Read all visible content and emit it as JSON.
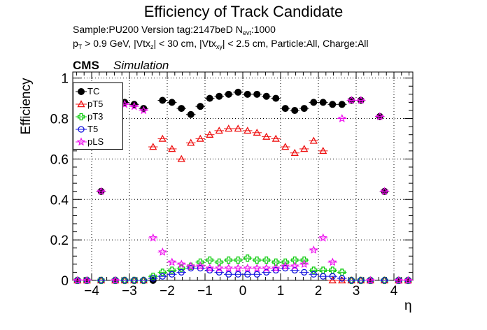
{
  "chart_data": {
    "type": "scatter",
    "title": "Efficiency of Track Candidate",
    "subtitle_line1": "Sample:PU200   Version tag:2147beD  N",
    "subtitle_line1_sub": "evt",
    "subtitle_line1_end": ":1000",
    "subtitle_line2": {
      "p": "p",
      "p_sub": "T",
      "a": " > 0.9 GeV, |Vtx",
      "z_sub": "z",
      "b": "| < 30 cm, |Vtx",
      "xy_sub": "xy",
      "c": "| < 2.5 cm, Particle:All, Charge:All"
    },
    "cms_label": "CMS",
    "simulation_label": "Simulation",
    "ylabel": "Efficiency",
    "xlabel": "η",
    "xlim": [
      -4.5,
      4.5
    ],
    "ylim": [
      0,
      1.03
    ],
    "xticks": [
      -4,
      -3,
      -2,
      -1,
      0,
      1,
      2,
      3,
      4
    ],
    "xtick_labels": [
      "−4",
      "−3",
      "−2",
      "−1",
      "0",
      "1",
      "2",
      "3",
      "4"
    ],
    "yticks": [
      0,
      0.2,
      0.4,
      0.6,
      0.8,
      1
    ],
    "ytick_labels": [
      "0",
      "0.2",
      "0.4",
      "0.6",
      "0.8",
      "1"
    ],
    "grid": true,
    "legend_position": "top-left",
    "bin_half_width": 0.125,
    "series": [
      {
        "name": "TC",
        "color": "#000000",
        "marker": "filled-circle",
        "points": [
          [
            -4.375,
            0
          ],
          [
            -4.125,
            0
          ],
          [
            -3.75,
            0.44
          ],
          [
            -3.375,
            0
          ],
          [
            -3.125,
            0.88
          ],
          [
            -2.875,
            0.87
          ],
          [
            -2.625,
            0.85
          ],
          [
            -2.375,
            0
          ],
          [
            -2.125,
            0.89
          ],
          [
            -1.875,
            0.88
          ],
          [
            -1.625,
            0.85
          ],
          [
            -1.375,
            0.82
          ],
          [
            -1.125,
            0.86
          ],
          [
            -0.875,
            0.9
          ],
          [
            -0.625,
            0.91
          ],
          [
            -0.375,
            0.92
          ],
          [
            -0.125,
            0.93
          ],
          [
            0.125,
            0.92
          ],
          [
            0.375,
            0.92
          ],
          [
            0.625,
            0.91
          ],
          [
            0.875,
            0.9
          ],
          [
            1.125,
            0.85
          ],
          [
            1.375,
            0.84
          ],
          [
            1.625,
            0.85
          ],
          [
            1.875,
            0.88
          ],
          [
            2.125,
            0.88
          ],
          [
            2.375,
            0.87
          ],
          [
            2.625,
            0.87
          ],
          [
            2.875,
            0.89
          ],
          [
            3.125,
            0.89
          ],
          [
            3.375,
            0
          ],
          [
            3.625,
            0.81
          ],
          [
            3.75,
            0.44
          ],
          [
            4.125,
            0
          ],
          [
            4.375,
            0
          ]
        ]
      },
      {
        "name": "pT5",
        "color": "#ee1111",
        "marker": "open-triangle",
        "points": [
          [
            -4.375,
            0
          ],
          [
            -4.125,
            0
          ],
          [
            -3.75,
            0
          ],
          [
            -3.375,
            0
          ],
          [
            -3.125,
            0
          ],
          [
            -2.875,
            0
          ],
          [
            -2.625,
            0
          ],
          [
            -2.375,
            0.66
          ],
          [
            -2.125,
            0.7
          ],
          [
            -1.875,
            0.65
          ],
          [
            -1.625,
            0.6
          ],
          [
            -1.375,
            0.68
          ],
          [
            -1.125,
            0.7
          ],
          [
            -0.875,
            0.72
          ],
          [
            -0.625,
            0.74
          ],
          [
            -0.375,
            0.75
          ],
          [
            -0.125,
            0.75
          ],
          [
            0.125,
            0.74
          ],
          [
            0.375,
            0.73
          ],
          [
            0.625,
            0.71
          ],
          [
            0.875,
            0.7
          ],
          [
            1.125,
            0.66
          ],
          [
            1.375,
            0.63
          ],
          [
            1.625,
            0.65
          ],
          [
            1.875,
            0.69
          ],
          [
            2.125,
            0.64
          ],
          [
            2.375,
            0
          ],
          [
            2.625,
            0
          ],
          [
            2.875,
            0
          ],
          [
            3.125,
            0
          ],
          [
            3.375,
            0
          ],
          [
            3.75,
            0
          ],
          [
            4.125,
            0
          ],
          [
            4.375,
            0
          ]
        ]
      },
      {
        "name": "pT3",
        "color": "#11cc11",
        "marker": "open-cross",
        "points": [
          [
            -4.375,
            0
          ],
          [
            -4.125,
            0
          ],
          [
            -3.75,
            0
          ],
          [
            -3.375,
            0
          ],
          [
            -3.125,
            0
          ],
          [
            -2.875,
            0
          ],
          [
            -2.625,
            0
          ],
          [
            -2.375,
            0.02
          ],
          [
            -2.125,
            0.04
          ],
          [
            -1.875,
            0.05
          ],
          [
            -1.625,
            0.06
          ],
          [
            -1.375,
            0.07
          ],
          [
            -1.125,
            0.09
          ],
          [
            -0.875,
            0.1
          ],
          [
            -0.625,
            0.09
          ],
          [
            -0.375,
            0.1
          ],
          [
            -0.125,
            0.1
          ],
          [
            0.125,
            0.11
          ],
          [
            0.375,
            0.1
          ],
          [
            0.625,
            0.1
          ],
          [
            0.875,
            0.09
          ],
          [
            1.125,
            0.09
          ],
          [
            1.375,
            0.1
          ],
          [
            1.625,
            0.1
          ],
          [
            1.875,
            0.05
          ],
          [
            2.125,
            0.05
          ],
          [
            2.375,
            0.05
          ],
          [
            2.625,
            0.04
          ],
          [
            2.875,
            0
          ],
          [
            3.125,
            0
          ],
          [
            3.375,
            0
          ],
          [
            3.75,
            0
          ],
          [
            4.125,
            0
          ],
          [
            4.375,
            0
          ]
        ]
      },
      {
        "name": "T5",
        "color": "#1111dd",
        "marker": "open-circle",
        "points": [
          [
            -4.375,
            0
          ],
          [
            -4.125,
            0
          ],
          [
            -3.75,
            0
          ],
          [
            -3.375,
            0
          ],
          [
            -3.125,
            0
          ],
          [
            -2.875,
            0
          ],
          [
            -2.625,
            0
          ],
          [
            -2.375,
            0.01
          ],
          [
            -2.125,
            0.02
          ],
          [
            -1.875,
            0.03
          ],
          [
            -1.625,
            0.04
          ],
          [
            -1.375,
            0.06
          ],
          [
            -1.125,
            0.06
          ],
          [
            -0.875,
            0.05
          ],
          [
            -0.625,
            0.04
          ],
          [
            -0.375,
            0.03
          ],
          [
            -0.125,
            0.03
          ],
          [
            0.125,
            0.03
          ],
          [
            0.375,
            0.03
          ],
          [
            0.625,
            0.04
          ],
          [
            0.875,
            0.05
          ],
          [
            1.125,
            0.06
          ],
          [
            1.375,
            0.05
          ],
          [
            1.625,
            0.04
          ],
          [
            1.875,
            0.03
          ],
          [
            2.125,
            0.02
          ],
          [
            2.375,
            0.02
          ],
          [
            2.625,
            0.01
          ],
          [
            2.875,
            0
          ],
          [
            3.125,
            0
          ],
          [
            3.375,
            0
          ],
          [
            3.75,
            0
          ],
          [
            4.125,
            0
          ],
          [
            4.375,
            0
          ]
        ]
      },
      {
        "name": "pLS",
        "color": "#ee11ee",
        "marker": "open-star",
        "points": [
          [
            -4.375,
            0
          ],
          [
            -4.125,
            0
          ],
          [
            -3.75,
            0.44
          ],
          [
            -3.375,
            0
          ],
          [
            -3.125,
            0.87
          ],
          [
            -2.875,
            0.86
          ],
          [
            -2.625,
            0.84
          ],
          [
            -2.375,
            0.21
          ],
          [
            -2.125,
            0.14
          ],
          [
            -1.875,
            0.09
          ],
          [
            -1.625,
            0.08
          ],
          [
            -1.375,
            0.07
          ],
          [
            -1.125,
            0.07
          ],
          [
            -0.875,
            0.06
          ],
          [
            -0.625,
            0.06
          ],
          [
            -0.375,
            0.06
          ],
          [
            -0.125,
            0.06
          ],
          [
            0.125,
            0.06
          ],
          [
            0.375,
            0.06
          ],
          [
            0.625,
            0.06
          ],
          [
            0.875,
            0.06
          ],
          [
            1.125,
            0.07
          ],
          [
            1.375,
            0.07
          ],
          [
            1.625,
            0.08
          ],
          [
            1.875,
            0.15
          ],
          [
            2.125,
            0.21
          ],
          [
            2.375,
            0.09
          ],
          [
            2.625,
            0.8
          ],
          [
            2.875,
            0.89
          ],
          [
            3.125,
            0.89
          ],
          [
            3.375,
            0
          ],
          [
            3.625,
            0.81
          ],
          [
            3.75,
            0.44
          ],
          [
            4.125,
            0
          ],
          [
            4.375,
            0
          ]
        ]
      }
    ]
  }
}
